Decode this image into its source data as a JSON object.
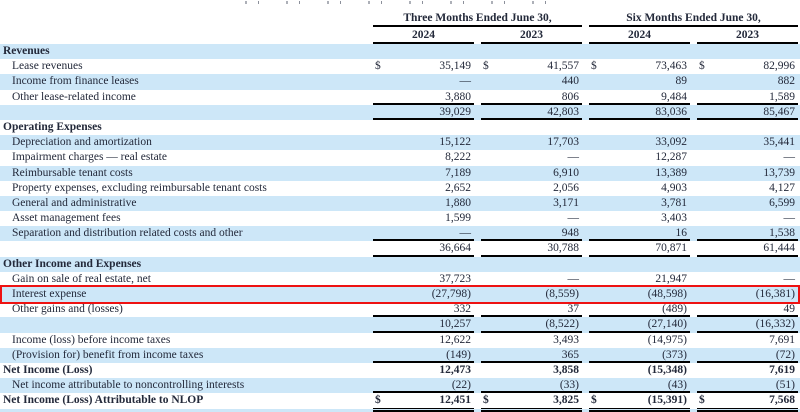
{
  "document": {
    "description": "Consolidated statements of income table with red highlight annotation"
  },
  "colors": {
    "row_shade": "#cde7f8",
    "highlight_red": "#ee1212",
    "rule_line": "#000000",
    "text": "#23293a"
  },
  "header": {
    "group1": "Three Months Ended June 30,",
    "group2": "Six Months Ended June 30,",
    "years": [
      "2024",
      "2023",
      "2024",
      "2023"
    ]
  },
  "table": {
    "rows": [
      {
        "name": "revenues-section",
        "label": "Revenues",
        "bold": true,
        "values": [
          "",
          "",
          "",
          ""
        ]
      },
      {
        "name": "lease-revenues",
        "label": "Lease revenues",
        "indent": true,
        "dollar": true,
        "values": [
          "35,149",
          "41,557",
          "73,463",
          "82,996"
        ]
      },
      {
        "name": "income-from-finance-leases",
        "label": "Income from finance leases",
        "indent": true,
        "values": [
          "—",
          "440",
          "89",
          "882"
        ]
      },
      {
        "name": "other-lease-related-income",
        "label": "Other lease-related income",
        "indent": true,
        "underline": true,
        "values": [
          "3,880",
          "806",
          "9,484",
          "1,589"
        ]
      },
      {
        "name": "total-revenues",
        "label": "",
        "underline": true,
        "values": [
          "39,029",
          "42,803",
          "83,036",
          "85,467"
        ]
      },
      {
        "name": "operating-expenses-section",
        "label": "Operating Expenses",
        "bold": true,
        "values": [
          "",
          "",
          "",
          ""
        ]
      },
      {
        "name": "depreciation-and-amortization",
        "label": "Depreciation and amortization",
        "indent": true,
        "values": [
          "15,122",
          "17,703",
          "33,092",
          "35,441"
        ]
      },
      {
        "name": "impairment-charges-real-estate",
        "label": "Impairment charges — real estate",
        "indent": true,
        "values": [
          "8,222",
          "—",
          "12,287",
          "—"
        ]
      },
      {
        "name": "reimbursable-tenant-costs",
        "label": "Reimbursable tenant costs",
        "indent": true,
        "values": [
          "7,189",
          "6,910",
          "13,389",
          "13,739"
        ]
      },
      {
        "name": "property-expenses",
        "label": "Property expenses, excluding reimbursable tenant costs",
        "indent": true,
        "values": [
          "2,652",
          "2,056",
          "4,903",
          "4,127"
        ]
      },
      {
        "name": "general-and-administrative",
        "label": "General and administrative",
        "indent": true,
        "values": [
          "1,880",
          "3,171",
          "3,781",
          "6,599"
        ]
      },
      {
        "name": "asset-management-fees",
        "label": "Asset management fees",
        "indent": true,
        "values": [
          "1,599",
          "—",
          "3,403",
          "—"
        ]
      },
      {
        "name": "separation-and-distribution-costs",
        "label": "Separation and distribution related costs and other",
        "indent": true,
        "underline": true,
        "values": [
          "—",
          "948",
          "16",
          "1,538"
        ]
      },
      {
        "name": "total-operating-expenses",
        "label": "",
        "underline": true,
        "values": [
          "36,664",
          "30,788",
          "70,871",
          "61,444"
        ]
      },
      {
        "name": "other-income-and-expenses-section",
        "label": "Other Income and Expenses",
        "bold": true,
        "values": [
          "",
          "",
          "",
          ""
        ]
      },
      {
        "name": "gain-on-sale-of-real-estate",
        "label": "Gain on sale of real estate, net",
        "indent": true,
        "values": [
          "37,723",
          "—",
          "21,947",
          "—"
        ]
      },
      {
        "name": "interest-expense",
        "label": "Interest expense",
        "indent": true,
        "highlighted": true,
        "values": [
          "(27,798)",
          "(8,559)",
          "(48,598)",
          "(16,381)"
        ]
      },
      {
        "name": "other-gains-and-losses",
        "label": "Other gains and (losses)",
        "indent": true,
        "underline": true,
        "values": [
          "332",
          "37",
          "(489)",
          "49"
        ]
      },
      {
        "name": "total-other-income-and-expenses",
        "label": "",
        "underline": true,
        "values": [
          "10,257",
          "(8,522)",
          "(27,140)",
          "(16,332)"
        ]
      },
      {
        "name": "income-loss-before-income-taxes",
        "label": "Income (loss) before income taxes",
        "indent": true,
        "values": [
          "12,622",
          "3,493",
          "(14,975)",
          "7,691"
        ]
      },
      {
        "name": "provision-for-benefit-from-income-taxes",
        "label": "(Provision for) benefit from income taxes",
        "indent": true,
        "underline": true,
        "values": [
          "(149)",
          "365",
          "(373)",
          "(72)"
        ]
      },
      {
        "name": "net-income-loss",
        "label": "Net Income (Loss)",
        "bold": true,
        "values": [
          "12,473",
          "3,858",
          "(15,348)",
          "7,619"
        ]
      },
      {
        "name": "noncontrolling-interests",
        "label": "Net income attributable to noncontrolling interests",
        "indent": true,
        "underline": true,
        "values": [
          "(22)",
          "(33)",
          "(43)",
          "(51)"
        ]
      },
      {
        "name": "net-income-loss-attributable-to-nlop",
        "label": "Net Income (Loss) Attributable to NLOP",
        "bold": true,
        "dollar": true,
        "double_underline": true,
        "values": [
          "12,451",
          "3,825",
          "(15,391)",
          "7,568"
        ]
      }
    ]
  }
}
